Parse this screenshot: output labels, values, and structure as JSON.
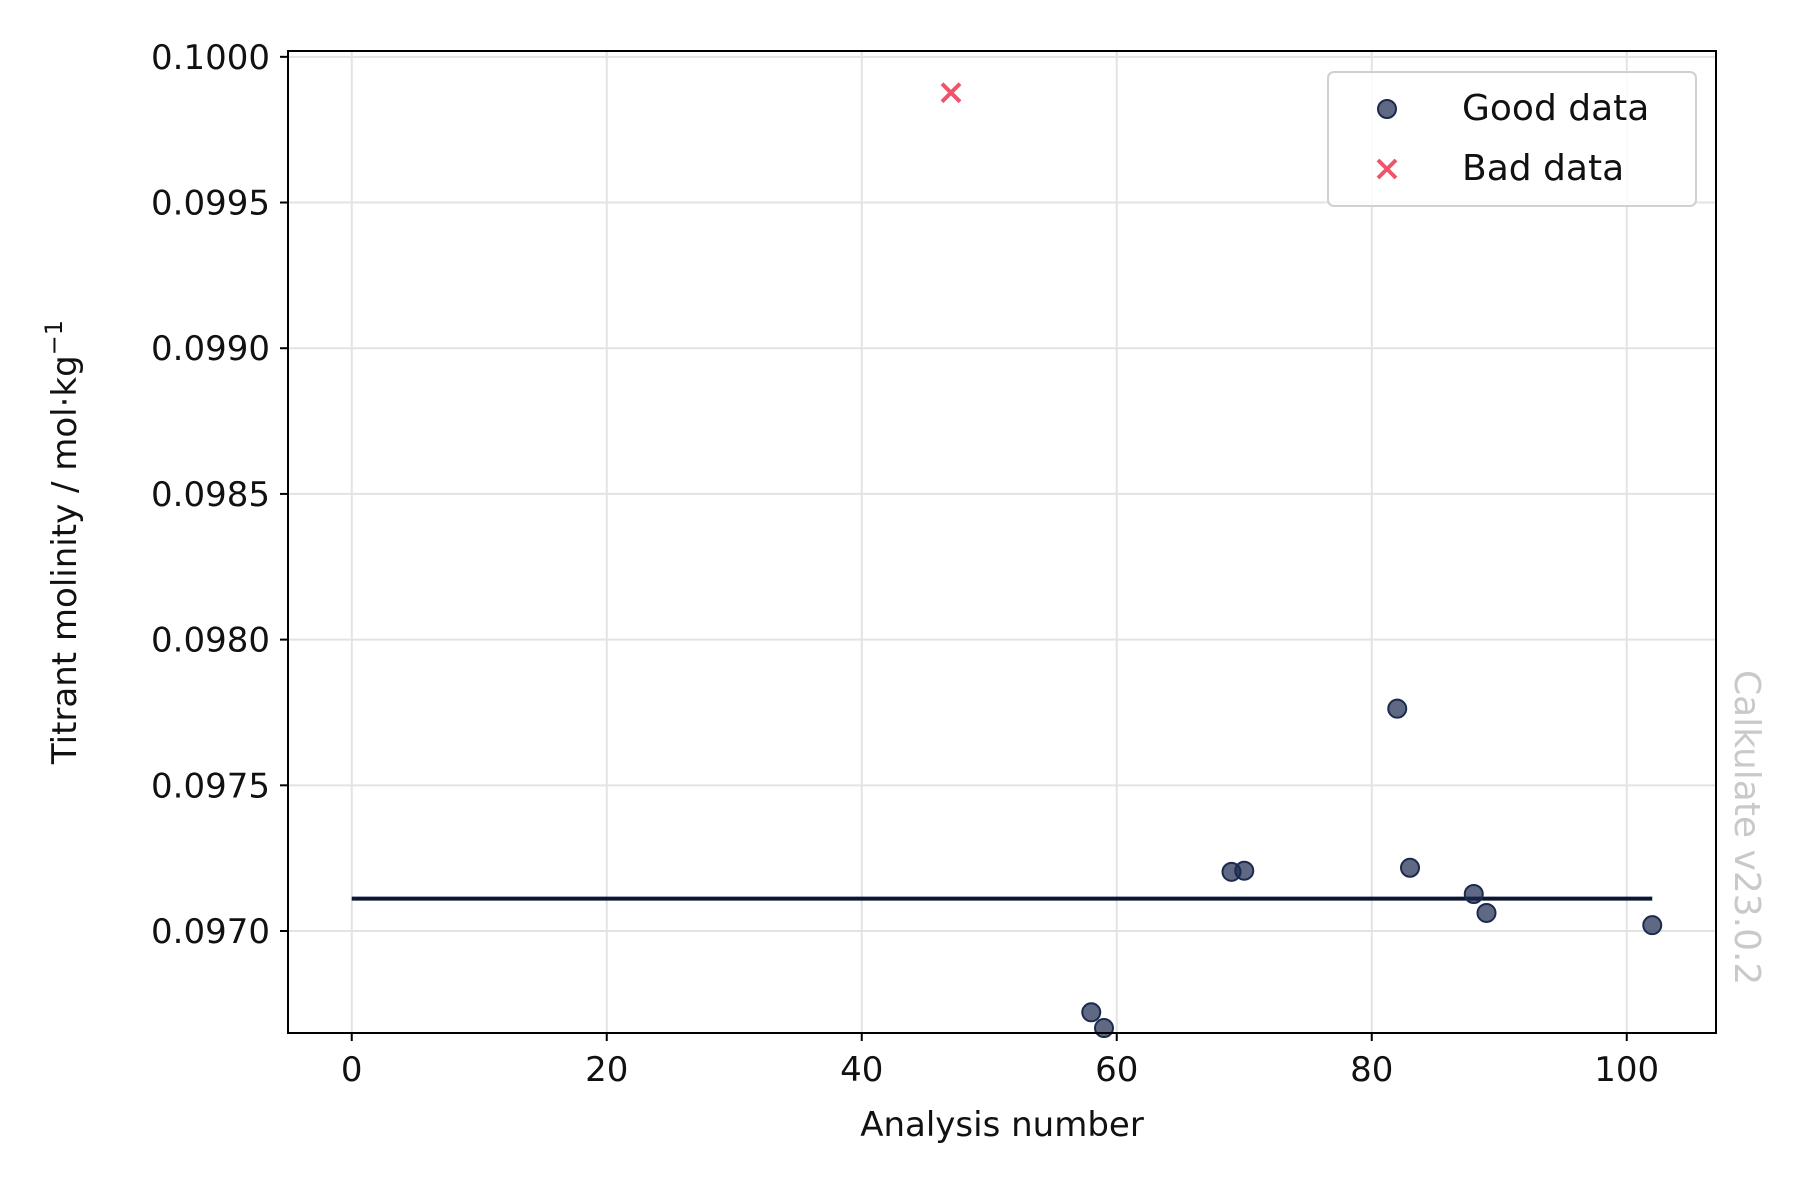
{
  "chart_data": {
    "type": "scatter",
    "xlabel": "Analysis number",
    "ylabel": "Titrant molinity / mol·kg",
    "ylabel_superscript": "−1",
    "xlim": [
      -5,
      107
    ],
    "ylim": [
      0.09665,
      0.10002
    ],
    "xticks": [
      0,
      20,
      40,
      60,
      80,
      100
    ],
    "xtick_labels": [
      "0",
      "20",
      "40",
      "60",
      "80",
      "100"
    ],
    "yticks": [
      0.097,
      0.0975,
      0.098,
      0.0985,
      0.099,
      0.0995,
      0.1
    ],
    "ytick_labels": [
      "0.0970",
      "0.0975",
      "0.0980",
      "0.0985",
      "0.0990",
      "0.0995",
      "0.1000"
    ],
    "grid": true,
    "legend_position": "top-right",
    "series": [
      {
        "name": "Good data",
        "marker": "circle",
        "color": "#1b2a4e",
        "points": [
          {
            "x": 58,
            "y": 0.096721
          },
          {
            "x": 59,
            "y": 0.096667
          },
          {
            "x": 69,
            "y": 0.097203
          },
          {
            "x": 70,
            "y": 0.097207
          },
          {
            "x": 82,
            "y": 0.097763
          },
          {
            "x": 83,
            "y": 0.097217
          },
          {
            "x": 88,
            "y": 0.097127
          },
          {
            "x": 89,
            "y": 0.097062
          },
          {
            "x": 102,
            "y": 0.09702
          }
        ]
      },
      {
        "name": "Bad data",
        "marker": "x",
        "color": "#f0546a",
        "points": [
          {
            "x": 47,
            "y": 0.099877
          }
        ]
      }
    ],
    "mean_line": {
      "y": 0.097111,
      "x_start": 0,
      "x_end": 102,
      "color": "#0b1633"
    },
    "watermark": "Calkulate v23.0.2"
  }
}
